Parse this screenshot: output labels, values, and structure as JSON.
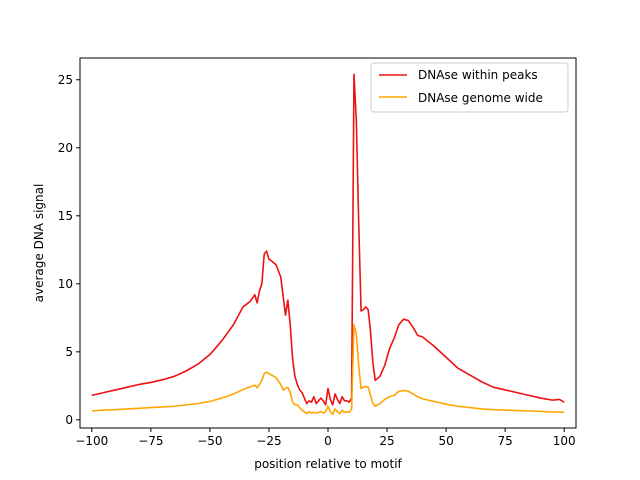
{
  "chart_data": {
    "type": "line",
    "title": "",
    "xlabel": "position relative to motif",
    "ylabel": "average DNA signal",
    "xlim": [
      -105,
      105
    ],
    "ylim": [
      -0.6,
      26.6
    ],
    "xticks": [
      -100,
      -75,
      -50,
      -25,
      0,
      25,
      50,
      75,
      100
    ],
    "xtick_labels": [
      "−100",
      "−75",
      "−50",
      "−25",
      "0",
      "25",
      "50",
      "75",
      "100"
    ],
    "yticks": [
      0,
      5,
      10,
      15,
      20,
      25
    ],
    "ytick_labels": [
      "0",
      "5",
      "10",
      "15",
      "20",
      "25"
    ],
    "grid": false,
    "legend_position": "top-right",
    "series": [
      {
        "name": "DNAse within peaks",
        "color": "#ee1111",
        "points": [
          [
            -100,
            1.8
          ],
          [
            -95,
            2.0
          ],
          [
            -90,
            2.2
          ],
          [
            -85,
            2.4
          ],
          [
            -80,
            2.6
          ],
          [
            -75,
            2.75
          ],
          [
            -70,
            2.95
          ],
          [
            -65,
            3.2
          ],
          [
            -60,
            3.6
          ],
          [
            -55,
            4.1
          ],
          [
            -50,
            4.8
          ],
          [
            -45,
            5.8
          ],
          [
            -40,
            7.0
          ],
          [
            -36,
            8.3
          ],
          [
            -33,
            8.7
          ],
          [
            -31,
            9.2
          ],
          [
            -30,
            8.6
          ],
          [
            -29,
            9.5
          ],
          [
            -28,
            10.0
          ],
          [
            -27,
            12.2
          ],
          [
            -26,
            12.4
          ],
          [
            -25,
            11.8
          ],
          [
            -24,
            11.7
          ],
          [
            -22,
            11.4
          ],
          [
            -20,
            10.5
          ],
          [
            -18,
            7.7
          ],
          [
            -17,
            8.8
          ],
          [
            -16,
            7.0
          ],
          [
            -15,
            4.5
          ],
          [
            -14,
            3.2
          ],
          [
            -13,
            2.6
          ],
          [
            -12,
            2.2
          ],
          [
            -11,
            2.0
          ],
          [
            -10,
            1.6
          ],
          [
            -9,
            1.2
          ],
          [
            -8,
            1.4
          ],
          [
            -7,
            1.3
          ],
          [
            -6,
            1.7
          ],
          [
            -5,
            1.2
          ],
          [
            -4,
            1.4
          ],
          [
            -3,
            1.6
          ],
          [
            -2,
            1.4
          ],
          [
            -1,
            1.1
          ],
          [
            0,
            2.3
          ],
          [
            1,
            1.5
          ],
          [
            2,
            1.1
          ],
          [
            3,
            1.9
          ],
          [
            4,
            1.5
          ],
          [
            5,
            1.2
          ],
          [
            6,
            1.7
          ],
          [
            7,
            1.4
          ],
          [
            8,
            1.4
          ],
          [
            9,
            1.3
          ],
          [
            10,
            1.6
          ],
          [
            11,
            25.4
          ],
          [
            12,
            22.0
          ],
          [
            13,
            14.5
          ],
          [
            14,
            8.0
          ],
          [
            15,
            8.1
          ],
          [
            16,
            8.3
          ],
          [
            17,
            8.1
          ],
          [
            18,
            6.5
          ],
          [
            19,
            4.2
          ],
          [
            20,
            2.9
          ],
          [
            22,
            3.2
          ],
          [
            24,
            4.0
          ],
          [
            26,
            5.2
          ],
          [
            28,
            6.0
          ],
          [
            30,
            7.0
          ],
          [
            32,
            7.4
          ],
          [
            34,
            7.3
          ],
          [
            36,
            6.8
          ],
          [
            38,
            6.2
          ],
          [
            40,
            6.1
          ],
          [
            45,
            5.4
          ],
          [
            50,
            4.6
          ],
          [
            55,
            3.8
          ],
          [
            60,
            3.3
          ],
          [
            65,
            2.8
          ],
          [
            70,
            2.4
          ],
          [
            75,
            2.2
          ],
          [
            80,
            2.0
          ],
          [
            85,
            1.8
          ],
          [
            90,
            1.6
          ],
          [
            95,
            1.45
          ],
          [
            98,
            1.5
          ],
          [
            100,
            1.3
          ]
        ]
      },
      {
        "name": "DNAse genome wide",
        "color": "#ffa500",
        "points": [
          [
            -100,
            0.65
          ],
          [
            -95,
            0.72
          ],
          [
            -90,
            0.75
          ],
          [
            -85,
            0.8
          ],
          [
            -80,
            0.85
          ],
          [
            -75,
            0.9
          ],
          [
            -70,
            0.95
          ],
          [
            -65,
            1.0
          ],
          [
            -60,
            1.1
          ],
          [
            -55,
            1.2
          ],
          [
            -50,
            1.35
          ],
          [
            -45,
            1.6
          ],
          [
            -40,
            1.9
          ],
          [
            -35,
            2.3
          ],
          [
            -31,
            2.55
          ],
          [
            -30,
            2.35
          ],
          [
            -29,
            2.6
          ],
          [
            -28,
            2.9
          ],
          [
            -27,
            3.4
          ],
          [
            -26,
            3.5
          ],
          [
            -25,
            3.4
          ],
          [
            -24,
            3.3
          ],
          [
            -22,
            3.1
          ],
          [
            -20,
            2.6
          ],
          [
            -19,
            2.2
          ],
          [
            -18,
            2.3
          ],
          [
            -17,
            2.4
          ],
          [
            -16,
            2.0
          ],
          [
            -15,
            1.3
          ],
          [
            -14,
            1.1
          ],
          [
            -13,
            1.1
          ],
          [
            -12,
            0.9
          ],
          [
            -11,
            0.7
          ],
          [
            -10,
            0.6
          ],
          [
            -9,
            0.45
          ],
          [
            -8,
            0.6
          ],
          [
            -7,
            0.5
          ],
          [
            -6,
            0.55
          ],
          [
            -5,
            0.5
          ],
          [
            -4,
            0.55
          ],
          [
            -3,
            0.6
          ],
          [
            -2,
            0.5
          ],
          [
            -1,
            0.6
          ],
          [
            0,
            1.0
          ],
          [
            1,
            0.6
          ],
          [
            2,
            0.4
          ],
          [
            3,
            0.8
          ],
          [
            4,
            0.6
          ],
          [
            5,
            0.45
          ],
          [
            6,
            0.7
          ],
          [
            7,
            0.55
          ],
          [
            8,
            0.6
          ],
          [
            9,
            0.55
          ],
          [
            10,
            0.8
          ],
          [
            11,
            7.0
          ],
          [
            12,
            6.3
          ],
          [
            13,
            4.0
          ],
          [
            14,
            2.3
          ],
          [
            15,
            2.4
          ],
          [
            16,
            2.45
          ],
          [
            17,
            2.4
          ],
          [
            18,
            1.8
          ],
          [
            19,
            1.2
          ],
          [
            20,
            1.0
          ],
          [
            22,
            1.2
          ],
          [
            24,
            1.5
          ],
          [
            26,
            1.7
          ],
          [
            28,
            1.8
          ],
          [
            30,
            2.1
          ],
          [
            32,
            2.15
          ],
          [
            34,
            2.1
          ],
          [
            36,
            1.9
          ],
          [
            38,
            1.7
          ],
          [
            40,
            1.55
          ],
          [
            45,
            1.35
          ],
          [
            50,
            1.15
          ],
          [
            55,
            1.0
          ],
          [
            60,
            0.9
          ],
          [
            65,
            0.8
          ],
          [
            70,
            0.75
          ],
          [
            75,
            0.72
          ],
          [
            80,
            0.68
          ],
          [
            85,
            0.65
          ],
          [
            90,
            0.62
          ],
          [
            95,
            0.58
          ],
          [
            100,
            0.55
          ]
        ]
      }
    ]
  }
}
